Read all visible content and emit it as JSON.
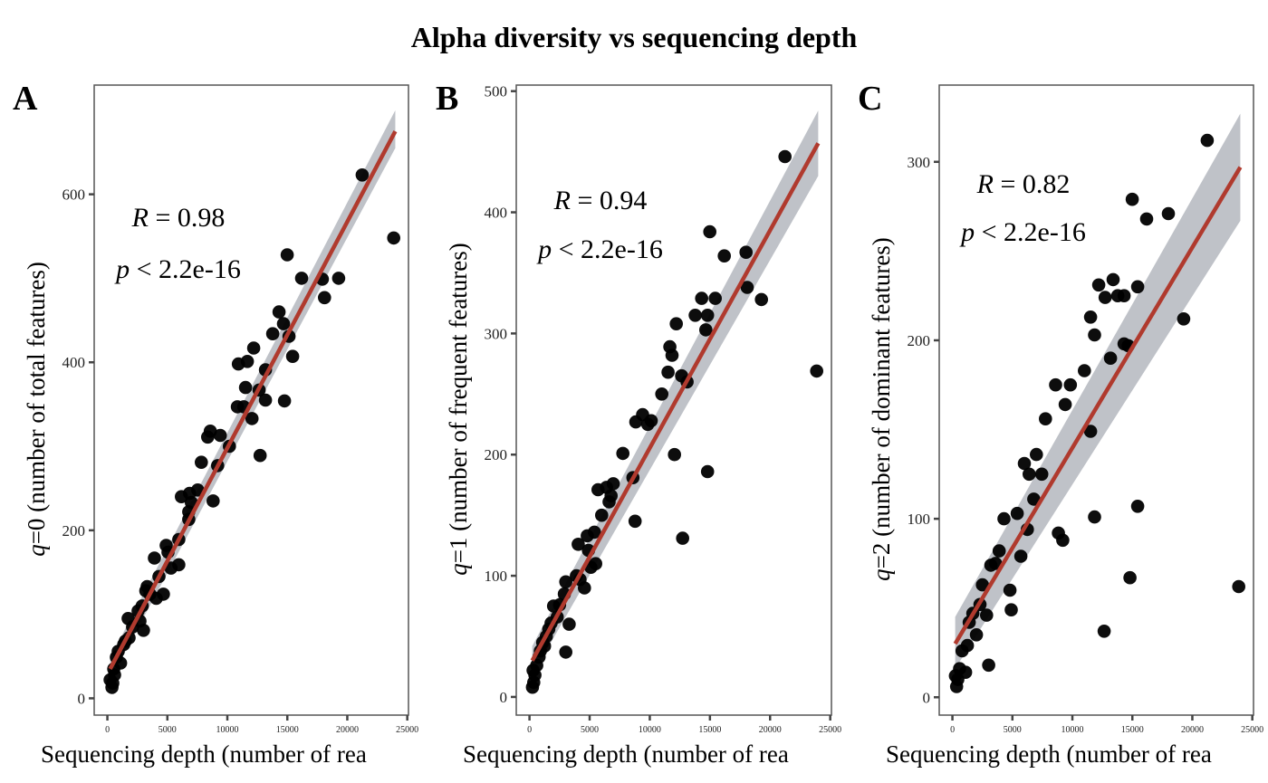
{
  "figure": {
    "title": "Alpha diversity vs sequencing depth"
  },
  "colors": {
    "point": "#000000",
    "fit_line": "#b03a2e",
    "confidence_band": "#a9aeb6",
    "frame": "#555555"
  },
  "chart_data": [
    {
      "type": "scatter",
      "panel": "A",
      "title": "",
      "xlabel": "Sequencing depth (number of rea",
      "ylabel_italic": "q",
      "ylabel_rest": "=0 (number of total features)",
      "xlim": [
        -1100,
        25100
      ],
      "ylim": [
        -20,
        730
      ],
      "xticks": [
        0,
        5000,
        10000,
        15000,
        20000,
        25000
      ],
      "xtick_labels": [
        "0",
        "5000",
        "10000",
        "15000",
        "20000",
        "25000"
      ],
      "yticks": [
        0,
        200,
        400,
        600
      ],
      "ytick_labels": [
        "0",
        "200",
        "400",
        "600"
      ],
      "stats": {
        "r_label_italic": "R",
        "r_label_rest": " = 0.98",
        "p_label_italic": "p",
        "p_label_rest": " < 2.2e-16"
      },
      "fit": {
        "x": [
          230,
          24000
        ],
        "y": [
          35,
          675
        ],
        "band_lower": [
          22,
          655
        ],
        "band_upper": [
          48,
          700
        ]
      },
      "x": [
        21240,
        23870,
        14990,
        16190,
        19280,
        17920,
        18100,
        14310,
        14680,
        15140,
        13780,
        15440,
        12200,
        11670,
        10920,
        13180,
        11520,
        12650,
        10840,
        11370,
        13180,
        14760,
        12050,
        12730,
        8360,
        9410,
        8580,
        10170,
        9190,
        7830,
        8810,
        7530,
        6170,
        6850,
        7000,
        6780,
        6780,
        5950,
        4900,
        5050,
        5950,
        3920,
        4670,
        4070,
        3320,
        3540,
        3010,
        2560,
        2710,
        1730,
        1810,
        1360,
        900,
        750,
        530,
        230,
        380,
        600,
        1100,
        2100,
        2900,
        4300,
        5300,
        3200,
        450,
        1500
      ],
      "y": [
        623,
        548,
        528,
        500,
        500,
        499,
        477,
        460,
        446,
        431,
        434,
        407,
        417,
        401,
        398,
        391,
        370,
        367,
        347,
        347,
        355,
        354,
        333,
        289,
        311,
        313,
        318,
        300,
        277,
        281,
        235,
        248,
        240,
        244,
        233,
        222,
        213,
        189,
        182,
        174,
        159,
        167,
        124,
        119,
        133,
        124,
        81,
        104,
        92,
        95,
        72,
        64,
        56,
        49,
        35,
        22,
        13,
        28,
        42,
        85,
        110,
        145,
        155,
        128,
        18,
        68
      ]
    },
    {
      "type": "scatter",
      "panel": "B",
      "title": "",
      "xlabel": "Sequencing depth (number of rea",
      "ylabel_italic": "q",
      "ylabel_rest": "=1 (number of frequent features)",
      "xlim": [
        -1100,
        25100
      ],
      "ylim": [
        -15,
        505
      ],
      "xticks": [
        0,
        5000,
        10000,
        15000,
        20000,
        25000
      ],
      "xtick_labels": [
        "0",
        "5000",
        "10000",
        "15000",
        "20000",
        "25000"
      ],
      "yticks": [
        0,
        100,
        200,
        300,
        400,
        500
      ],
      "ytick_labels": [
        "0",
        "100",
        "200",
        "300",
        "400",
        "500"
      ],
      "stats": {
        "r_label_italic": "R",
        "r_label_rest": " = 0.94",
        "p_label_italic": "p",
        "p_label_rest": " < 2.2e-16"
      },
      "fit": {
        "x": [
          230,
          24000
        ],
        "y": [
          30,
          457
        ],
        "band_lower": [
          18,
          430
        ],
        "band_upper": [
          42,
          484
        ]
      },
      "x": [
        21240,
        23870,
        14990,
        16190,
        18000,
        18100,
        19280,
        14310,
        15440,
        14800,
        14660,
        13780,
        12200,
        11670,
        11850,
        11520,
        12650,
        13100,
        11000,
        9830,
        9400,
        10120,
        8600,
        8840,
        12050,
        12730,
        7760,
        14800,
        6960,
        6400,
        5700,
        6780,
        6000,
        6620,
        5400,
        4800,
        4900,
        5100,
        5500,
        4050,
        3900,
        3020,
        4200,
        3020,
        4570,
        2900,
        2500,
        2300,
        2000,
        1800,
        1400,
        1600,
        1100,
        900,
        600,
        450,
        350,
        250,
        300,
        800,
        3300,
        8780,
        1250
      ],
      "y": [
        446,
        269,
        384,
        364,
        367,
        338,
        328,
        329,
        329,
        315,
        303,
        315,
        308,
        289,
        282,
        268,
        265,
        260,
        250,
        225,
        233,
        228,
        181,
        227,
        200,
        131,
        201,
        186,
        176,
        173,
        171,
        166,
        150,
        161,
        136,
        133,
        121,
        107,
        110,
        126,
        100,
        95,
        97,
        37,
        90,
        85,
        76,
        66,
        75,
        61,
        50,
        56,
        45,
        38,
        26,
        18,
        12,
        8,
        22,
        33,
        60,
        145,
        42
      ]
    },
    {
      "type": "scatter",
      "panel": "C",
      "title": "",
      "xlabel": "Sequencing depth (number of rea",
      "ylabel_italic": "q",
      "ylabel_rest": "=2 (number of dominant features)",
      "xlim": [
        -1100,
        25100
      ],
      "ylim": [
        -10,
        343
      ],
      "xticks": [
        0,
        5000,
        10000,
        15000,
        20000,
        25000
      ],
      "xtick_labels": [
        "0",
        "5000",
        "10000",
        "15000",
        "20000",
        "25000"
      ],
      "yticks": [
        0,
        100,
        200,
        300
      ],
      "ytick_labels": [
        "0",
        "100",
        "200",
        "300"
      ],
      "stats": {
        "r_label_italic": "R",
        "r_label_rest": " = 0.82",
        "p_label_italic": "p",
        "p_label_rest": " < 2.2e-16"
      },
      "fit": {
        "x": [
          230,
          24000
        ],
        "y": [
          30,
          297
        ],
        "band_lower": [
          16,
          267
        ],
        "band_upper": [
          45,
          327
        ]
      },
      "x": [
        21240,
        23870,
        14990,
        16190,
        18000,
        19280,
        15440,
        14310,
        13780,
        13180,
        14310,
        12200,
        12730,
        13400,
        11520,
        11850,
        11000,
        11520,
        14660,
        9830,
        9400,
        8600,
        7760,
        7450,
        7000,
        6400,
        6780,
        6000,
        5400,
        4800,
        4300,
        3900,
        3600,
        3200,
        5700,
        6250,
        8840,
        9200,
        11850,
        15440,
        14800,
        12650,
        4900,
        3020,
        2850,
        2500,
        2300,
        2000,
        1700,
        1400,
        1250,
        1100,
        800,
        600,
        450,
        350,
        250
      ],
      "y": [
        312,
        62,
        279,
        268,
        271,
        212,
        230,
        225,
        225,
        190,
        198,
        231,
        224,
        234,
        213,
        203,
        183,
        149,
        197,
        175,
        164,
        175,
        156,
        125,
        136,
        125,
        111,
        131,
        103,
        60,
        100,
        82,
        75,
        74,
        79,
        94,
        92,
        88,
        101,
        107,
        67,
        37,
        49,
        18,
        46,
        63,
        52,
        35,
        47,
        42,
        29,
        14,
        26,
        16,
        10,
        6,
        12
      ]
    }
  ]
}
